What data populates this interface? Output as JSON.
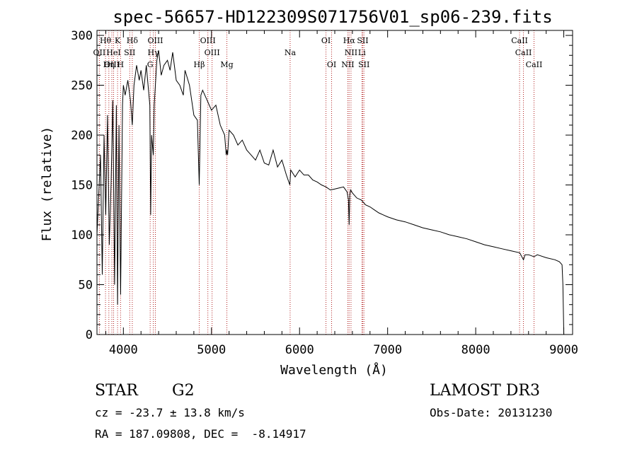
{
  "chart_data": {
    "type": "line",
    "title": "spec-56657-HD122309S071756V01_sp06-239.fits",
    "xlabel": "Wavelength (Å)",
    "ylabel": "Flux (relative)",
    "xlim": [
      3700,
      9100
    ],
    "ylim": [
      0,
      305
    ],
    "x_ticks": [
      4000,
      5000,
      6000,
      7000,
      8000,
      9000
    ],
    "y_ticks": [
      0,
      50,
      100,
      150,
      200,
      250,
      300
    ],
    "series": [
      {
        "name": "flux",
        "x": [
          3700,
          3720,
          3740,
          3760,
          3780,
          3800,
          3820,
          3840,
          3860,
          3880,
          3900,
          3920,
          3934,
          3950,
          3968,
          3990,
          4000,
          4020,
          4050,
          4080,
          4101,
          4120,
          4150,
          4180,
          4200,
          4230,
          4260,
          4300,
          4310,
          4320,
          4340,
          4350,
          4380,
          4400,
          4430,
          4460,
          4500,
          4530,
          4560,
          4600,
          4640,
          4680,
          4700,
          4750,
          4800,
          4840,
          4861,
          4880,
          4900,
          4950,
          5000,
          5050,
          5100,
          5150,
          5167,
          5175,
          5183,
          5200,
          5250,
          5300,
          5350,
          5400,
          5450,
          5500,
          5550,
          5600,
          5650,
          5700,
          5750,
          5800,
          5850,
          5890,
          5900,
          5950,
          6000,
          6050,
          6100,
          6150,
          6200,
          6250,
          6300,
          6350,
          6400,
          6450,
          6500,
          6540,
          6555,
          6563,
          6570,
          6580,
          6600,
          6650,
          6700,
          6750,
          6800,
          6850,
          6900,
          6950,
          7000,
          7100,
          7200,
          7300,
          7400,
          7500,
          7600,
          7700,
          7800,
          7900,
          8000,
          8100,
          8200,
          8300,
          8400,
          8500,
          8542,
          8560,
          8600,
          8662,
          8700,
          8800,
          8900,
          8950,
          8980,
          8990,
          9000
        ],
        "y": [
          100,
          140,
          180,
          60,
          200,
          120,
          220,
          90,
          150,
          235,
          50,
          230,
          30,
          210,
          40,
          230,
          250,
          240,
          255,
          235,
          210,
          250,
          270,
          255,
          265,
          245,
          270,
          230,
          120,
          200,
          180,
          230,
          275,
          285,
          260,
          270,
          275,
          265,
          283,
          255,
          250,
          240,
          265,
          250,
          220,
          215,
          150,
          240,
          245,
          235,
          225,
          230,
          210,
          200,
          180,
          185,
          180,
          205,
          200,
          190,
          195,
          185,
          180,
          175,
          185,
          172,
          170,
          185,
          168,
          175,
          160,
          150,
          165,
          158,
          165,
          160,
          160,
          155,
          153,
          150,
          148,
          145,
          146,
          147,
          148,
          143,
          135,
          110,
          140,
          145,
          142,
          137,
          135,
          130,
          128,
          125,
          122,
          120,
          118,
          115,
          113,
          110,
          107,
          105,
          103,
          100,
          98,
          96,
          93,
          90,
          88,
          86,
          84,
          82,
          75,
          80,
          80,
          78,
          80,
          77,
          75,
          73,
          70,
          50,
          0
        ]
      }
    ],
    "lines": [
      {
        "label": "Hθ",
        "x": 3797,
        "row": 0
      },
      {
        "label": "K",
        "x": 3934,
        "row": 0
      },
      {
        "label": "Hδ",
        "x": 4101,
        "row": 0
      },
      {
        "label": "OIII",
        "x": 4363,
        "row": 0
      },
      {
        "label": "OIII",
        "x": 4959,
        "row": 0
      },
      {
        "label": "OI",
        "x": 6300,
        "row": 0
      },
      {
        "label": "Hα",
        "x": 6563,
        "row": 0
      },
      {
        "label": "SII",
        "x": 6717,
        "row": 0
      },
      {
        "label": "CaII",
        "x": 8498,
        "row": 0
      },
      {
        "label": "OII",
        "x": 3727,
        "row": 1
      },
      {
        "label": "HeI",
        "x": 3889,
        "row": 1
      },
      {
        "label": "SII",
        "x": 4072,
        "row": 1
      },
      {
        "label": "Hγ",
        "x": 4340,
        "row": 1
      },
      {
        "label": "OIII",
        "x": 5007,
        "row": 1
      },
      {
        "label": "Na",
        "x": 5893,
        "row": 1
      },
      {
        "label": "NII",
        "x": 6584,
        "row": 1
      },
      {
        "label": "Li",
        "x": 6708,
        "row": 1
      },
      {
        "label": "CaII",
        "x": 8542,
        "row": 1
      },
      {
        "label": "OIII",
        "x": 3869,
        "row": 2
      },
      {
        "label": "Hη",
        "x": 3835,
        "row": 2
      },
      {
        "label": "H",
        "x": 3968,
        "row": 2
      },
      {
        "label": "G",
        "x": 4304,
        "row": 2
      },
      {
        "label": "Hβ",
        "x": 4861,
        "row": 2
      },
      {
        "label": "Mg",
        "x": 5175,
        "row": 2
      },
      {
        "label": "OI",
        "x": 6364,
        "row": 2
      },
      {
        "label": "NII",
        "x": 6548,
        "row": 2
      },
      {
        "label": "SII",
        "x": 6731,
        "row": 2
      },
      {
        "label": "CaII",
        "x": 8662,
        "row": 2
      }
    ]
  },
  "info": {
    "object_class": "STAR",
    "subclass": "G2",
    "survey": "LAMOST DR3",
    "cz": "cz = -23.7 ± 13.8 km/s",
    "obs_date": "Obs-Date: 20131230",
    "coords": "RA = 187.09808, DEC =  -8.14917"
  },
  "colors": {
    "spectrum": "#000000",
    "line_markers": "#b22222",
    "axes": "#000000"
  }
}
